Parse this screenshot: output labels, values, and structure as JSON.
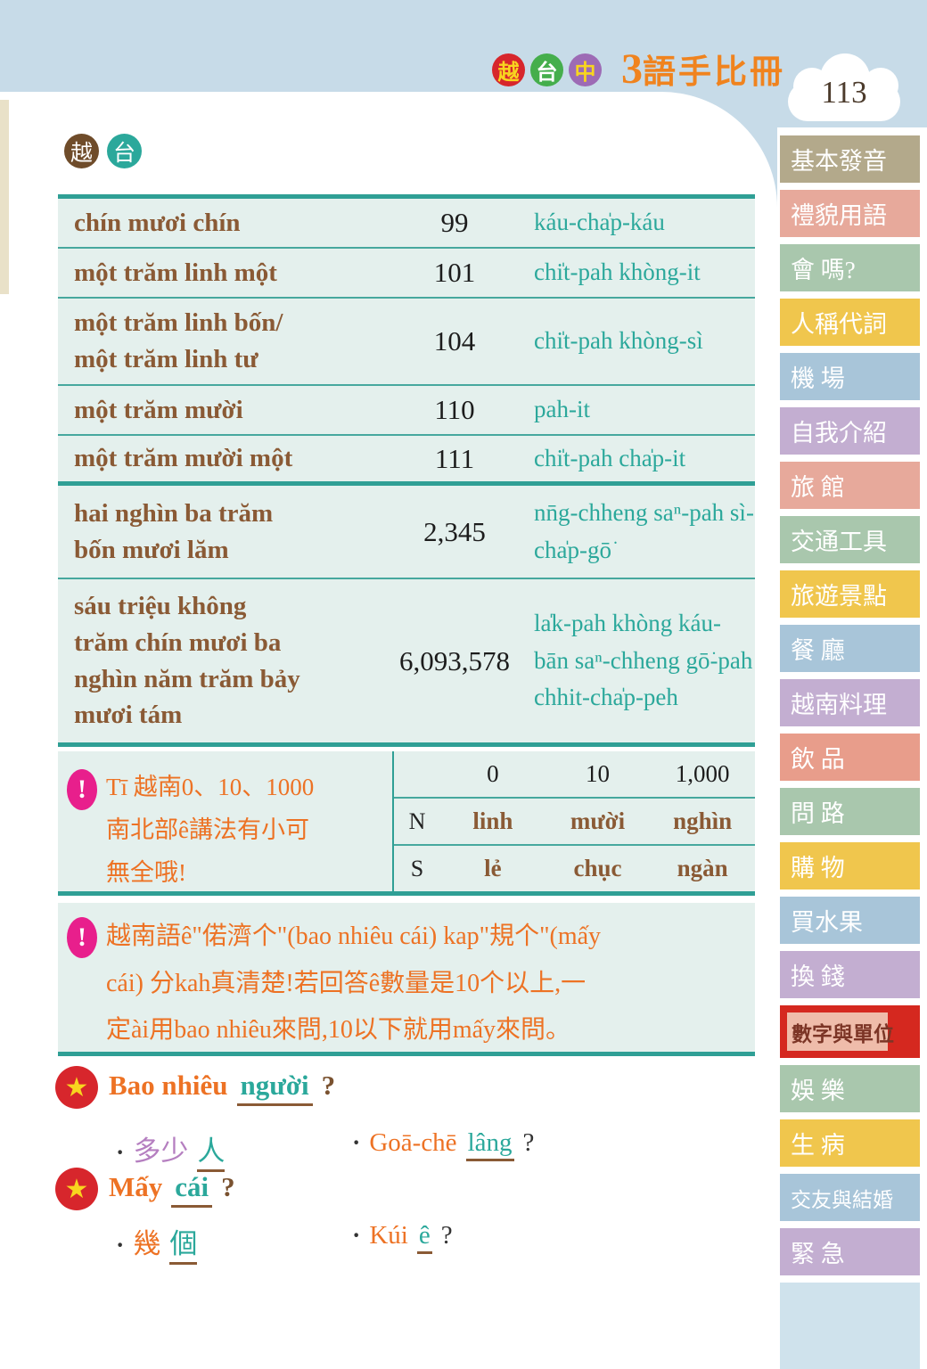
{
  "page": {
    "number": "113",
    "bullet": "·"
  },
  "colors": {
    "band_blue": "#c7dbe8",
    "mint": "#e4f0ed",
    "teal_line": "#2f9f95",
    "vietnamese_brown": "#8a5a35",
    "taiwanese_teal": "#2ba89b",
    "note_orange": "#ed7224",
    "exclaim_magenta": "#e81f8c",
    "active_tab_red": "#d5281f",
    "active_tab_inner": "#efbcaa"
  },
  "header": {
    "lang_badges": [
      {
        "label": "越",
        "bg": "#d7262c",
        "fg": "#f8d51f"
      },
      {
        "label": "台",
        "bg": "#45ae4c",
        "fg": "#ffffff"
      },
      {
        "label": "中",
        "bg": "#9d6bb5",
        "fg": "#f8d51f"
      }
    ],
    "title_number": "3",
    "title_text": "語手比冊"
  },
  "section_badges": [
    {
      "label": "越",
      "bg": "#6f4c2a"
    },
    {
      "label": "台",
      "bg": "#2ba89b"
    }
  ],
  "number_table": {
    "rows": [
      {
        "vn": "chín mươi chín",
        "num": "99",
        "tw": "káu-cha̍p-káu"
      },
      {
        "vn": "một trăm linh một",
        "num": "101",
        "tw": "chi̍t-pah khòng-it"
      },
      {
        "vn": "một trăm linh bốn/\nmột trăm linh tư",
        "num": "104",
        "tw": "chi̍t-pah khòng-sì"
      },
      {
        "vn": "một trăm mười",
        "num": "110",
        "tw": "pah-it"
      },
      {
        "vn": "một trăm mười một",
        "num": "111",
        "tw": "chi̍t-pah cha̍p-it"
      },
      {
        "vn": "hai nghìn ba trăm\nbốn mươi lăm",
        "num": "2,345",
        "tw": "nn̄g-chheng saⁿ-pah sì-\ncha̍p-gō͘"
      },
      {
        "vn": "sáu triệu không\ntrăm chín mươi ba\nnghìn năm trăm bảy\nmươi tám",
        "num": "6,093,578",
        "tw": "la̍k-pah khòng káu-\nbān saⁿ-chheng gō͘-pah\nchhit-cha̍p-peh"
      }
    ]
  },
  "note1": {
    "icon": "!",
    "text": "Tī 越南0、10、1000\n南北部ê講法有小可\n無全哦!",
    "mini_table": {
      "header": {
        "h1": "0",
        "h2": "10",
        "h3": "1,000"
      },
      "row_n": {
        "label": "N",
        "c1": "linh",
        "c2": "mười",
        "c3": "nghìn"
      },
      "row_s": {
        "label": "S",
        "c1": "lẻ",
        "c2": "chục",
        "c3": "ngàn"
      }
    }
  },
  "note2": {
    "icon": "!",
    "text": "越南語ê\"偌濟个\"(bao nhiêu cái) kap\"規个\"(mấy\ncái) 分kah真清楚!若回答ê數量是10个以上,一\n定ài用bao nhiêu來問,10以下就用mấy來問。"
  },
  "examples": {
    "q1": {
      "lead": "Bao nhiêu",
      "key": "người",
      "qmark": "?",
      "zh_a": "多少",
      "zh_b": "人",
      "tw_a": "Goā-chē",
      "tw_b": "lâng",
      "tw_q": "?"
    },
    "q2": {
      "lead": "Mấy",
      "key": "cái",
      "qmark": "?",
      "zh_a": "幾",
      "zh_b": "個",
      "tw_a": "Kúi",
      "tw_b": "ê",
      "tw_q": "?"
    }
  },
  "sidebar": {
    "active_label": "數字與單位",
    "tabs": [
      {
        "label": "基本發音",
        "bg": "#b3a98b"
      },
      {
        "label": "禮貌用語",
        "bg": "#e7a99b"
      },
      {
        "label": "會 嗎?",
        "bg": "#a9c7ad"
      },
      {
        "label": "人稱代詞",
        "bg": "#f0c64d"
      },
      {
        "label": "機 場",
        "bg": "#a8c5d9"
      },
      {
        "label": "自我介紹",
        "bg": "#c3aed1"
      },
      {
        "label": "旅 館",
        "bg": "#e7a99b"
      },
      {
        "label": "交通工具",
        "bg": "#a9c7ad"
      },
      {
        "label": "旅遊景點",
        "bg": "#f0c64d"
      },
      {
        "label": "餐 廳",
        "bg": "#a8c5d9"
      },
      {
        "label": "越南料理",
        "bg": "#c3aed1"
      },
      {
        "label": "飲 品",
        "bg": "#e89d8b"
      },
      {
        "label": "問 路",
        "bg": "#a9c7ad"
      },
      {
        "label": "購 物",
        "bg": "#f0c64d"
      },
      {
        "label": "買水果",
        "bg": "#a8c5d9"
      },
      {
        "label": "換 錢",
        "bg": "#c3aed1"
      },
      {
        "label": "數字與單位",
        "bg": "#d5281f"
      },
      {
        "label": "娛 樂",
        "bg": "#a9c7ad"
      },
      {
        "label": "生 病",
        "bg": "#f0c64d"
      },
      {
        "label": "交友與結婚",
        "bg": "#a8c5d9"
      },
      {
        "label": "緊 急",
        "bg": "#c3aed1"
      },
      {
        "label": "",
        "bg": "#cfe2ec"
      }
    ]
  }
}
